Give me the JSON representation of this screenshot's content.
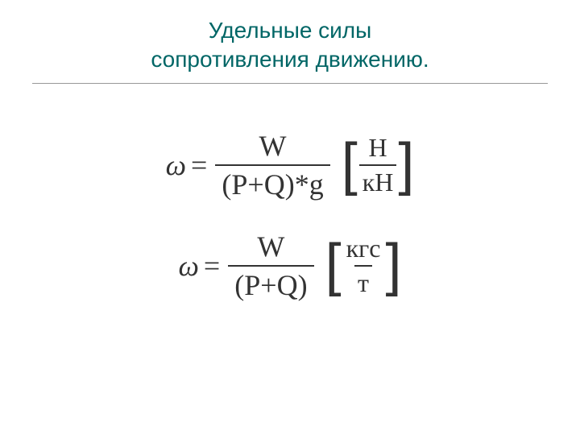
{
  "title": {
    "line1": "Удельные силы",
    "line2": "сопротивления движению."
  },
  "formula1": {
    "omega": "ω",
    "equals": "=",
    "numerator": "W",
    "denom_open": "(",
    "denom_p": "P",
    "denom_plus": "+",
    "denom_q": "Q",
    "denom_close": ")",
    "denom_mult": "*",
    "denom_g": "g",
    "unit_num": "Н",
    "unit_denom": "кН"
  },
  "formula2": {
    "omega": "ω",
    "equals": "=",
    "numerator": "W",
    "denom_open": "(",
    "denom_p": "P",
    "denom_plus": "+",
    "denom_q": "Q",
    "denom_close": ")",
    "unit_num": "кгс",
    "unit_denom": "т"
  },
  "styling": {
    "title_color": "#006666",
    "formula_color": "#333333",
    "bg_color": "#ffffff",
    "hr_color": "#999999",
    "title_fontsize": 28,
    "formula_fontsize": 36,
    "unit_fontsize": 32,
    "bracket_fontsize": 72
  }
}
